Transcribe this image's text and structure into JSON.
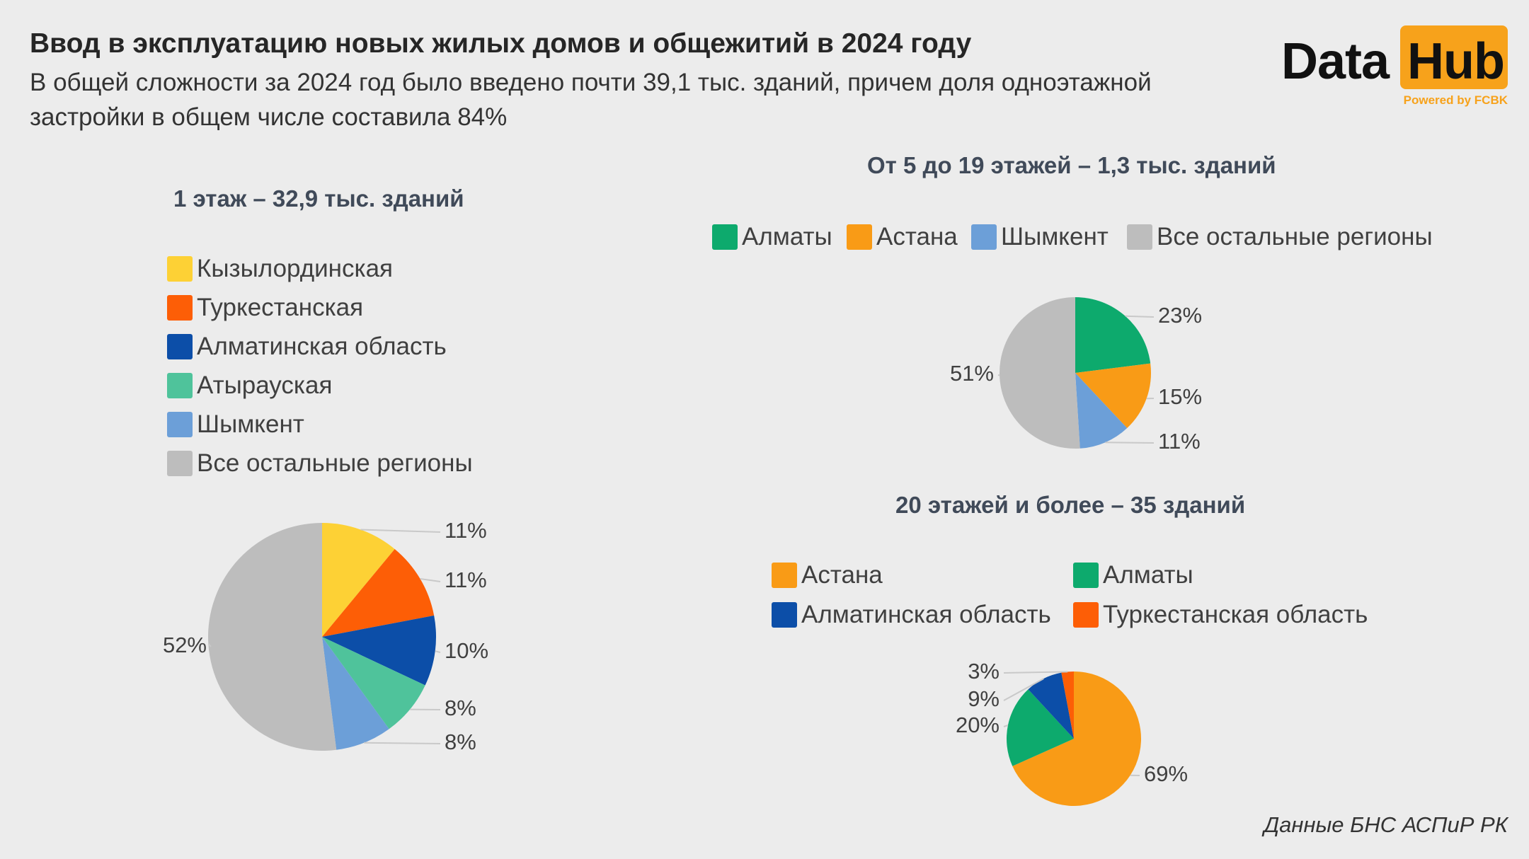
{
  "header": {
    "title": "Ввод в эксплуатацию новых жилых домов и общежитий в 2024 году",
    "subtitle": "В общей сложности за 2024 год было введено почти 39,1 тыс. зданий, причем доля одноэтажной застройки в общем числе составила 84%"
  },
  "logo": {
    "word1": "Data",
    "word2": "Hub",
    "tagline": "Powered by FCBK"
  },
  "source": "Данные БНС АСПиР РК",
  "chart_data": [
    {
      "type": "pie",
      "title": "1 этаж – 32,9 тыс. зданий",
      "labels": [
        "Кызылординская",
        "Туркестанская",
        "Алматинская область",
        "Атырауская",
        "Шымкент",
        "Все остальные регионы"
      ],
      "values": [
        11,
        11,
        10,
        8,
        8,
        52
      ],
      "value_labels": [
        "11%",
        "11%",
        "10%",
        "8%",
        "8%",
        "52%"
      ],
      "colors": [
        "#fdd135",
        "#fd5e06",
        "#0c4ea8",
        "#4fc39b",
        "#6c9fd8",
        "#bdbdbd"
      ],
      "legend_position": "top-left"
    },
    {
      "type": "pie",
      "title": "От 5 до 19 этажей – 1,3 тыс. зданий",
      "labels": [
        "Алматы",
        "Астана",
        "Шымкент",
        "Все остальные регионы"
      ],
      "values": [
        23,
        15,
        11,
        51
      ],
      "value_labels": [
        "23%",
        "15%",
        "11%",
        "51%"
      ],
      "colors": [
        "#0daa6d",
        "#f99b16",
        "#6c9fd8",
        "#bdbdbd"
      ],
      "legend_position": "top"
    },
    {
      "type": "pie",
      "title": "20 этажей и более – 35 зданий",
      "labels": [
        "Астана",
        "Алматы",
        "Алматинская область",
        "Туркестанская область"
      ],
      "legend_order": [
        "Астана",
        "Алматы",
        "Алматинская область",
        "Туркестанская область"
      ],
      "values": [
        69,
        20,
        9,
        3
      ],
      "value_labels": [
        "69%",
        "20%",
        "9%",
        "3%"
      ],
      "colors": [
        "#f99b16",
        "#0daa6d",
        "#0c4ea8",
        "#fd5e06"
      ],
      "legend_position": "top"
    }
  ]
}
